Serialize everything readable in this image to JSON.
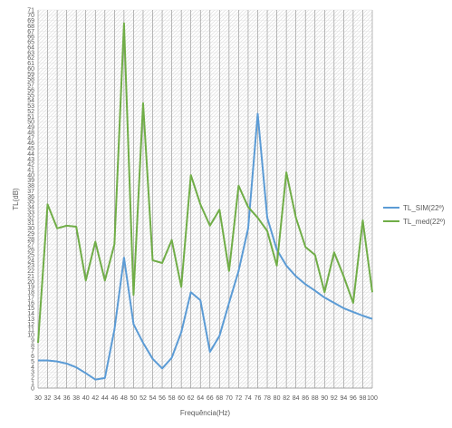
{
  "chart_data": {
    "type": "line",
    "title": "",
    "xlabel": "Frequência(Hz)",
    "ylabel": "TL(dB)",
    "ylim": [
      0,
      71
    ],
    "yticks_step": 1,
    "grid": true,
    "legend_position": "right",
    "categories": [
      "30",
      "32",
      "34",
      "36",
      "38",
      "40",
      "42",
      "44",
      "46",
      "48",
      "50",
      "52",
      "54",
      "56",
      "58",
      "60",
      "62",
      "64",
      "66",
      "68",
      "70",
      "72",
      "74",
      "76",
      "78",
      "80",
      "82",
      "84",
      "86",
      "88",
      "90",
      "92",
      "94",
      "96",
      "98",
      "100"
    ],
    "series": [
      {
        "name": "TL_SIM(22º)",
        "color": "#5b9bd5",
        "values": [
          5.2,
          5.2,
          5.0,
          4.6,
          3.9,
          2.8,
          1.6,
          1.9,
          11.0,
          24.5,
          12.0,
          8.5,
          5.5,
          3.7,
          5.7,
          10.5,
          18.0,
          16.5,
          6.8,
          9.8,
          16.0,
          22.0,
          30.0,
          51.5,
          32.0,
          26.0,
          23.0,
          21.0,
          19.5,
          18.3,
          17.0,
          16.0,
          15.0,
          14.3,
          13.6,
          13.0
        ]
      },
      {
        "name": "TL_med(22º)",
        "color": "#70ad47",
        "values": [
          8.5,
          34.5,
          30.0,
          30.5,
          30.3,
          20.2,
          27.5,
          20.2,
          27.0,
          68.5,
          17.5,
          53.5,
          24.0,
          23.5,
          27.8,
          19.0,
          40.0,
          34.5,
          30.5,
          33.5,
          22.0,
          38.0,
          34.0,
          32.0,
          29.5,
          23.0,
          40.5,
          32.0,
          26.5,
          25.0,
          18.0,
          25.5,
          21.0,
          16.0,
          31.5,
          18.0
        ]
      }
    ]
  }
}
